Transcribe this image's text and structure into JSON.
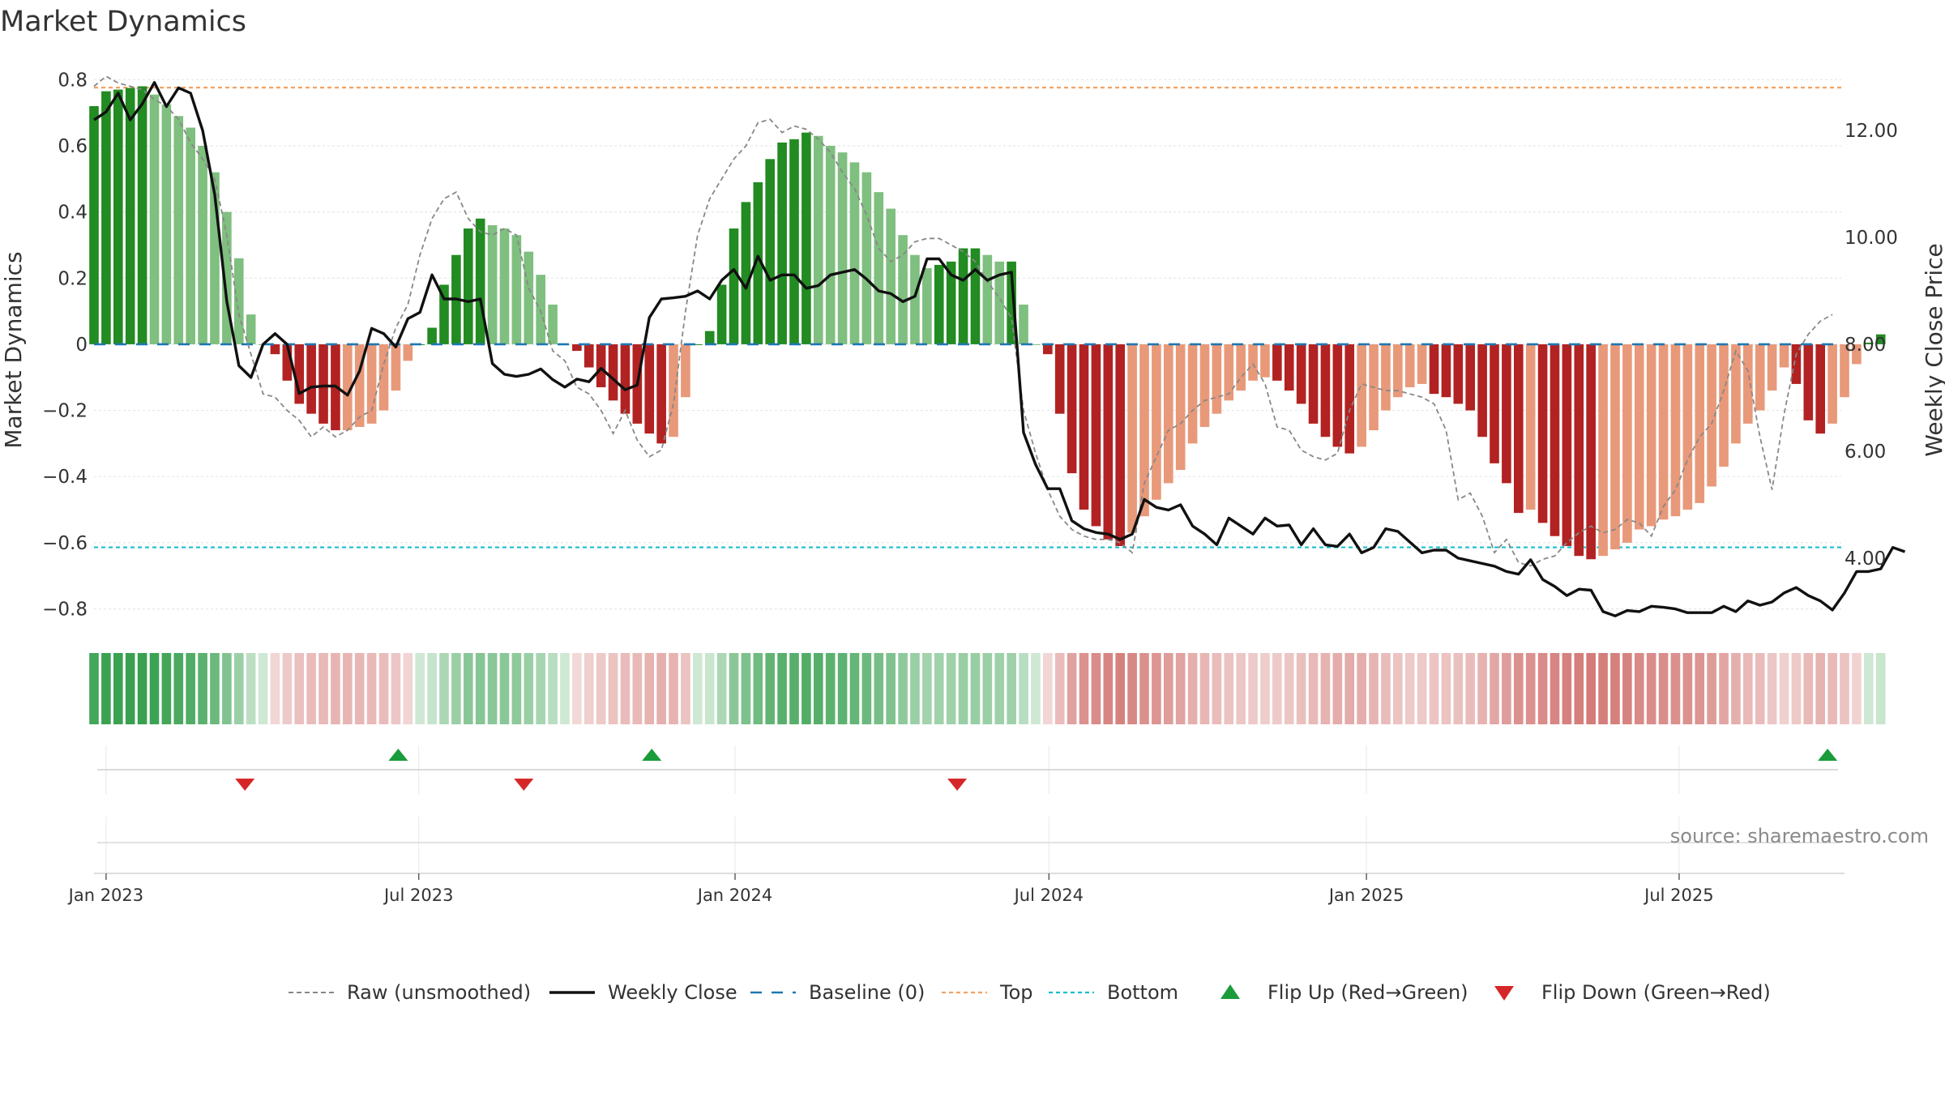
{
  "chart_data": {
    "type": "bar",
    "title": "Market Dynamics",
    "ylabel": "Market Dynamics",
    "y2label": "Weekly Close Price",
    "ylim": [
      -0.86,
      0.84
    ],
    "y2lim": [
      2.68,
      13.2
    ],
    "yticks": [
      -0.8,
      -0.6,
      -0.4,
      -0.2,
      0,
      0.2,
      0.4,
      0.6,
      0.8
    ],
    "ytick_labels": [
      "−0.8",
      "−0.6",
      "−0.4",
      "−0.2",
      "0",
      "0.2",
      "0.4",
      "0.6",
      "0.8"
    ],
    "y2ticks": [
      4.0,
      6.0,
      8.0,
      10.0,
      12.0
    ],
    "y2tick_labels": [
      "4.00",
      "6.00",
      "8.00",
      "10.00",
      "12.00"
    ],
    "x_start": "2022-12-25",
    "x_range_weeks": [
      0,
      145
    ],
    "x_ticks": [
      {
        "label": "Jan 2023",
        "week": 1.0
      },
      {
        "label": "Jul 2023",
        "week": 26.9
      },
      {
        "label": "Jan 2024",
        "week": 53.1
      },
      {
        "label": "Jul 2024",
        "week": 79.1
      },
      {
        "label": "Jan 2025",
        "week": 105.4
      },
      {
        "label": "Jul 2025",
        "week": 131.3
      }
    ],
    "top_level": 0.776,
    "bottom_level": -0.614,
    "baseline": 0,
    "legend_placement": "bottom-center",
    "series": [
      {
        "name": "Market Dynamics (smoothed)",
        "values": [
          0.72,
          0.765,
          0.77,
          0.775,
          0.78,
          0.755,
          0.725,
          0.69,
          0.655,
          0.6,
          0.52,
          0.4,
          0.26,
          0.09,
          0,
          -0.03,
          -0.11,
          -0.18,
          -0.21,
          -0.24,
          -0.26,
          -0.26,
          -0.25,
          -0.24,
          -0.2,
          -0.14,
          -0.05,
          0,
          0.05,
          0.18,
          0.27,
          0.35,
          0.38,
          0.36,
          0.35,
          0.33,
          0.28,
          0.21,
          0.12,
          0,
          -0.02,
          -0.07,
          -0.13,
          -0.17,
          -0.21,
          -0.24,
          -0.27,
          -0.3,
          -0.28,
          -0.16,
          0,
          0.04,
          0.18,
          0.35,
          0.43,
          0.49,
          0.56,
          0.61,
          0.62,
          0.64,
          0.63,
          0.6,
          0.58,
          0.55,
          0.52,
          0.46,
          0.41,
          0.33,
          0.27,
          0.23,
          0.24,
          0.25,
          0.29,
          0.29,
          0.27,
          0.25,
          0.25,
          0.12,
          0,
          -0.03,
          -0.21,
          -0.39,
          -0.5,
          -0.55,
          -0.59,
          -0.61,
          -0.57,
          -0.52,
          -0.47,
          -0.42,
          -0.38,
          -0.3,
          -0.25,
          -0.21,
          -0.17,
          -0.14,
          -0.11,
          -0.1,
          -0.11,
          -0.14,
          -0.18,
          -0.24,
          -0.28,
          -0.31,
          -0.33,
          -0.31,
          -0.26,
          -0.2,
          -0.16,
          -0.13,
          -0.12,
          -0.15,
          -0.16,
          -0.18,
          -0.2,
          -0.28,
          -0.36,
          -0.42,
          -0.51,
          -0.5,
          -0.54,
          -0.58,
          -0.61,
          -0.64,
          -0.65,
          -0.64,
          -0.62,
          -0.6,
          -0.56,
          -0.55,
          -0.53,
          -0.52,
          -0.5,
          -0.48,
          -0.43,
          -0.37,
          -0.3,
          -0.24,
          -0.2,
          -0.14,
          -0.07,
          -0.12,
          -0.23,
          -0.27,
          -0.24,
          -0.16,
          -0.06,
          0.005,
          0.03
        ]
      },
      {
        "name": "Raw (unsmoothed)",
        "values": [
          0.78,
          0.81,
          0.79,
          0.78,
          0.77,
          0.74,
          0.72,
          0.68,
          0.61,
          0.56,
          0.5,
          0.33,
          0.09,
          -0.03,
          -0.15,
          -0.16,
          -0.2,
          -0.23,
          -0.28,
          -0.25,
          -0.28,
          -0.26,
          -0.22,
          -0.2,
          -0.06,
          0.05,
          0.12,
          0.27,
          0.38,
          0.44,
          0.46,
          0.38,
          0.34,
          0.33,
          0.35,
          0.33,
          0.17,
          0.1,
          -0.02,
          -0.05,
          -0.13,
          -0.15,
          -0.2,
          -0.27,
          -0.2,
          -0.29,
          -0.34,
          -0.32,
          -0.18,
          0.1,
          0.33,
          0.44,
          0.5,
          0.56,
          0.6,
          0.67,
          0.68,
          0.64,
          0.66,
          0.65,
          0.62,
          0.58,
          0.52,
          0.47,
          0.39,
          0.29,
          0.25,
          0.27,
          0.31,
          0.32,
          0.32,
          0.3,
          0.28,
          0.25,
          0.19,
          0.14,
          0.08,
          -0.2,
          -0.33,
          -0.44,
          -0.52,
          -0.56,
          -0.58,
          -0.59,
          -0.59,
          -0.6,
          -0.63,
          -0.42,
          -0.34,
          -0.26,
          -0.24,
          -0.2,
          -0.17,
          -0.16,
          -0.15,
          -0.1,
          -0.06,
          -0.12,
          -0.25,
          -0.26,
          -0.32,
          -0.34,
          -0.35,
          -0.33,
          -0.2,
          -0.12,
          -0.13,
          -0.14,
          -0.14,
          -0.15,
          -0.16,
          -0.18,
          -0.26,
          -0.47,
          -0.45,
          -0.52,
          -0.63,
          -0.59,
          -0.66,
          -0.67,
          -0.65,
          -0.64,
          -0.6,
          -0.57,
          -0.55,
          -0.57,
          -0.56,
          -0.53,
          -0.54,
          -0.58,
          -0.49,
          -0.44,
          -0.35,
          -0.28,
          -0.24,
          -0.14,
          -0.02,
          -0.08,
          -0.28,
          -0.44,
          -0.21,
          -0.03,
          0.03,
          0.07,
          0.09
        ]
      },
      {
        "name": "Weekly Close",
        "values": [
          12.2,
          12.35,
          12.7,
          12.2,
          12.5,
          12.9,
          12.45,
          12.8,
          12.7,
          12.0,
          10.8,
          8.8,
          7.6,
          7.38,
          8.0,
          8.2,
          8.0,
          7.08,
          7.2,
          7.22,
          7.22,
          7.05,
          7.5,
          8.3,
          8.2,
          7.95,
          8.48,
          8.6,
          9.3,
          8.85,
          8.85,
          8.8,
          8.85,
          7.64,
          7.44,
          7.4,
          7.44,
          7.54,
          7.34,
          7.2,
          7.35,
          7.3,
          7.55,
          7.35,
          7.15,
          7.24,
          8.5,
          8.85,
          8.87,
          8.9,
          9.0,
          8.85,
          9.2,
          9.4,
          9.05,
          9.65,
          9.2,
          9.3,
          9.3,
          9.05,
          9.1,
          9.3,
          9.35,
          9.4,
          9.22,
          9.0,
          8.95,
          8.8,
          8.9,
          9.6,
          9.6,
          9.3,
          9.2,
          9.4,
          9.2,
          9.3,
          9.35,
          6.35,
          5.75,
          5.3,
          5.3,
          4.7,
          4.55,
          4.48,
          4.45,
          4.35,
          4.45,
          5.1,
          4.95,
          4.9,
          5.0,
          4.6,
          4.45,
          4.25,
          4.75,
          4.6,
          4.45,
          4.75,
          4.6,
          4.62,
          4.25,
          4.55,
          4.25,
          4.22,
          4.45,
          4.1,
          4.2,
          4.55,
          4.5,
          4.3,
          4.1,
          4.15,
          4.15,
          4.0,
          3.95,
          3.9,
          3.85,
          3.75,
          3.7,
          3.97,
          3.6,
          3.47,
          3.3,
          3.42,
          3.4,
          3.0,
          2.92,
          3.02,
          3.0,
          3.1,
          3.08,
          3.05,
          2.98,
          2.98,
          2.98,
          3.1,
          3.0,
          3.2,
          3.12,
          3.18,
          3.35,
          3.45,
          3.3,
          3.2,
          3.03,
          3.35,
          3.75,
          3.75,
          3.8,
          4.2,
          4.12
        ]
      }
    ],
    "flips_up": [
      25.2,
      46.2,
      143.6
    ],
    "flips_down": [
      12.5,
      35.6,
      71.5
    ],
    "bottom_strip_colors": "matches bar sign and magnitude",
    "source_text": "source: sharemaestro.com"
  },
  "legend": [
    {
      "key": "raw",
      "label": "Raw (unsmoothed)"
    },
    {
      "key": "close",
      "label": "Weekly Close"
    },
    {
      "key": "baseline",
      "label": "Baseline (0)"
    },
    {
      "key": "top",
      "label": "Top"
    },
    {
      "key": "bottom",
      "label": "Bottom"
    },
    {
      "key": "flipup",
      "label": "Flip Up (Red→Green)"
    },
    {
      "key": "flipdown",
      "label": "Flip Down (Green→Red)"
    }
  ],
  "colors": {
    "green_strong": "#228b22",
    "green_light": "#7fbf7f",
    "red_strong": "#b22222",
    "red_light": "#e8997a",
    "raw": "#888888",
    "close": "#111111",
    "baseline": "#1f77b4",
    "top": "#f4a261",
    "bottom": "#17becf",
    "flip_up": "#1a9c3a",
    "flip_down": "#d62728"
  }
}
